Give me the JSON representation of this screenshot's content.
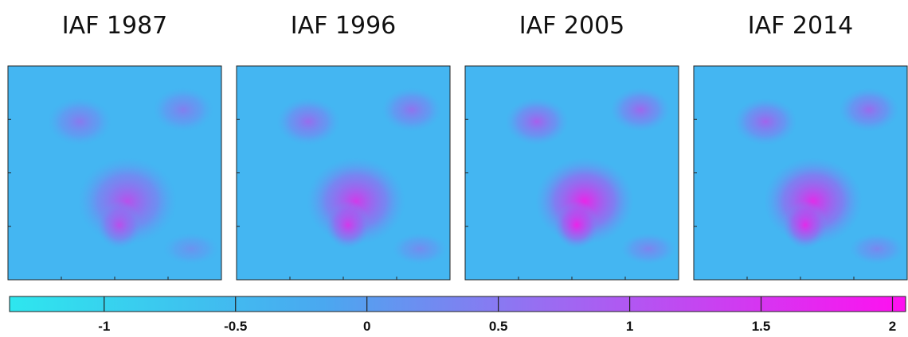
{
  "panels": [
    {
      "title": "IAF 1987"
    },
    {
      "title": "IAF 1996"
    },
    {
      "title": "IAF 2005"
    },
    {
      "title": "IAF 2014"
    }
  ],
  "colorbar": {
    "lim": [
      -1.36,
      2.05
    ],
    "ticks": [
      -1,
      -0.5,
      0,
      0.5,
      1,
      1.5,
      2
    ]
  }
}
